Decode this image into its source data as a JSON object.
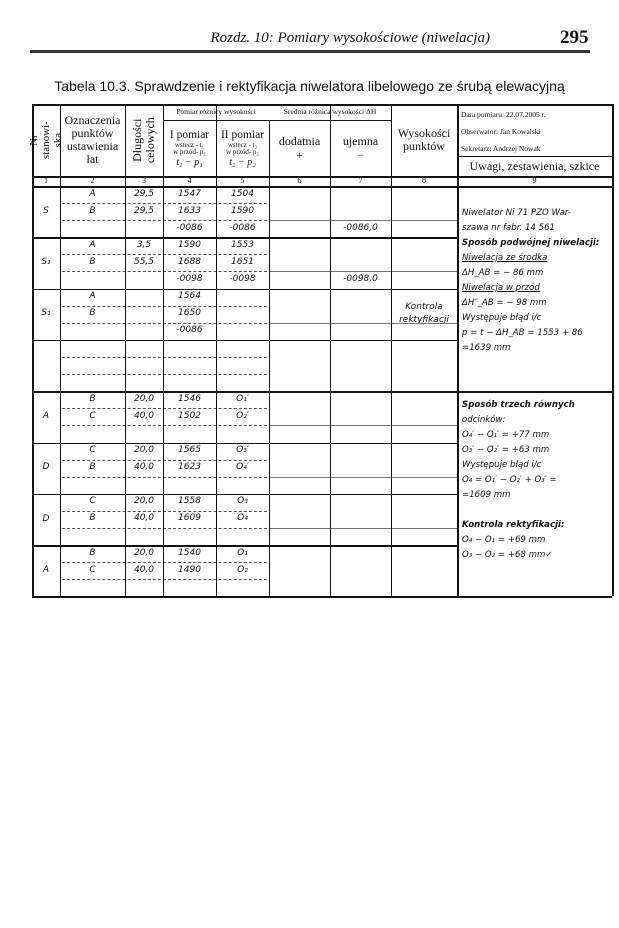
{
  "header": {
    "chapter": "Rozdz. 10: Pomiary wysokościowe (niwelacja)",
    "page_number": "295"
  },
  "caption": "Tabela 10.3. Sprawdzenie i rektyfikacja niwelatora libelowego ze śrubą elewacyjną",
  "columns": {
    "c1": "Nr stanowi-ska",
    "c2": "Oznaczenia punktów ustawienia łat",
    "c3": "Długości celowych",
    "group45": "Pomiar różnicy wysokości",
    "c4_title": "I pomiar",
    "c4_a": "wstecz - t₁",
    "c4_b": "w przód- p₁",
    "c4_f": "t₁ − p₁",
    "c5_title": "II pomiar",
    "c5_a": "wstecz - t₂",
    "c5_b": "w przód- p₂",
    "c5_f": "t₂ − p₂",
    "group67": "Średnia różnica wysokości ΔH",
    "c6": "dodatnia",
    "c6_sign": "+",
    "c7": "ujemna",
    "c7_sign": "−",
    "c8": "Wysokości punktów",
    "c9_date": "Data pomiaru: 22.07.2005 r.",
    "c9_observer": "Obserwator: Jan Kowalski",
    "c9_secretary": "Sekretarz: Andrzej Nowak",
    "c9": "Uwagi, zestawienia, szkice",
    "numbers": [
      "1",
      "2",
      "3",
      "4",
      "5",
      "6",
      "7",
      "8",
      "9"
    ]
  },
  "groups": [
    {
      "station": "S",
      "rows": [
        [
          "A",
          "29,5",
          "1547",
          "1504",
          "",
          ""
        ],
        [
          "B",
          "29,5",
          "1633",
          "1590",
          "",
          ""
        ],
        [
          "",
          "",
          "-0086",
          "-0086",
          "",
          "-0086,0"
        ]
      ]
    },
    {
      "station": "S₁",
      "rows": [
        [
          "A",
          "3,5",
          "1590",
          "1553",
          "",
          ""
        ],
        [
          "B",
          "55,5",
          "1688",
          "1651",
          "",
          ""
        ],
        [
          "",
          "",
          "-0098",
          "-0098",
          "",
          "-0098,0"
        ]
      ]
    },
    {
      "station": "S₁",
      "h": "Kontrola rektyfikacji",
      "rows": [
        [
          "A",
          "",
          "1564",
          "",
          "",
          ""
        ],
        [
          "B",
          "",
          "1650",
          "",
          "",
          ""
        ],
        [
          "",
          "",
          "-0086",
          "",
          "",
          ""
        ]
      ]
    },
    {
      "station": "",
      "rows": [
        [
          "",
          "",
          "",
          "",
          "",
          ""
        ],
        [
          "",
          "",
          "",
          "",
          "",
          ""
        ],
        [
          "",
          "",
          "",
          "",
          "",
          ""
        ]
      ]
    },
    {
      "station": "A",
      "rows": [
        [
          "B",
          "20,0",
          "1546",
          "O₁′",
          "",
          ""
        ],
        [
          "C",
          "40,0",
          "1502",
          "O₂′",
          "",
          ""
        ],
        [
          "",
          "",
          "",
          "",
          "",
          ""
        ]
      ]
    },
    {
      "station": "D",
      "rows": [
        [
          "C",
          "20,0",
          "1565",
          "O₃′",
          "",
          ""
        ],
        [
          "B",
          "40,0",
          "1623",
          "O₄′",
          "",
          ""
        ],
        [
          "",
          "",
          "",
          "",
          "",
          ""
        ]
      ]
    },
    {
      "station": "D",
      "rows": [
        [
          "C",
          "20,0",
          "1558",
          "O₃",
          "",
          ""
        ],
        [
          "B",
          "40,0",
          "1609",
          "O₄",
          "",
          ""
        ],
        [
          "",
          "",
          "",
          "",
          "",
          ""
        ]
      ]
    },
    {
      "station": "A",
      "rows": [
        [
          "B",
          "20,0",
          "1540",
          "O₁",
          "",
          ""
        ],
        [
          "C",
          "40,0",
          "1490",
          "O₂",
          "",
          ""
        ],
        [
          "",
          "",
          "",
          "",
          "",
          ""
        ]
      ]
    }
  ],
  "notes_top": [
    "Niwelator Ni 71 PZO War-",
    "szawa nr fabr. 14 561",
    "Sposób podwójnej niwelacji:",
    "Niwelacja ze środka",
    "ΔH_AB = − 86 mm",
    "Niwelacja w przód",
    "ΔH″_AB = − 98 mm",
    "Występuje błąd i/c",
    "p = t − ΔH_AB = 1553 + 86",
    "=1639 mm"
  ],
  "notes_bottom": [
    "Sposób trzech równych",
    "odcinków:",
    "O₄′ − O₁′ = +77 mm",
    "O₃′ − O₂′ = +63 mm",
    "Występuje błąd i/c",
    "O₄ = O₁′ − O₂′ + O₃′ =",
    "=1609 mm",
    "",
    "Kontrola rektyfikacji:",
    "O₄ − O₁ = +69 mm",
    "O₃ − O₂ = +68 mm✓"
  ]
}
